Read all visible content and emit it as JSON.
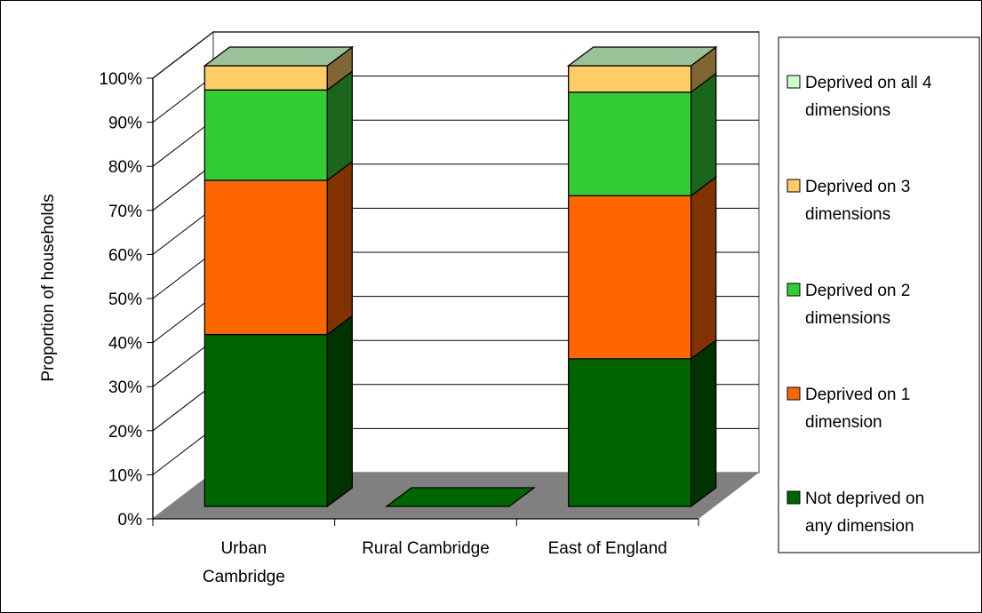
{
  "chart_data": {
    "type": "bar",
    "subtype": "stacked-percent-3d",
    "ylabel": "Proportion of households",
    "yticks": [
      "0%",
      "10%",
      "20%",
      "30%",
      "40%",
      "50%",
      "60%",
      "70%",
      "80%",
      "90%",
      "100%"
    ],
    "ylim": [
      0,
      100
    ],
    "grid": true,
    "legend_position": "right",
    "categories": [
      {
        "label": "Urban Cambridge",
        "lines": [
          "Urban",
          "Cambridge"
        ]
      },
      {
        "label": "Rural Cambridge",
        "lines": [
          "Rural Cambridge"
        ]
      },
      {
        "label": "East of England",
        "lines": [
          "East of England"
        ]
      }
    ],
    "series": [
      {
        "name": "Not deprived on any dimension",
        "legend_lines": [
          "Not deprived on",
          "any dimension"
        ],
        "color": "#006600",
        "side_color": "#003300",
        "values": [
          39,
          0,
          33.5
        ]
      },
      {
        "name": "Deprived on 1 dimension",
        "legend_lines": [
          "Deprived on 1",
          "dimension"
        ],
        "color": "#FF6600",
        "side_color": "#803300",
        "values": [
          35,
          0,
          37
        ]
      },
      {
        "name": "Deprived on 2 dimensions",
        "legend_lines": [
          "Deprived on 2",
          "dimensions"
        ],
        "color": "#33CC33",
        "side_color": "#1A661A",
        "values": [
          20.5,
          0,
          23.5
        ]
      },
      {
        "name": "Deprived on 3 dimensions",
        "legend_lines": [
          "Deprived on 3",
          "dimensions"
        ],
        "color": "#FFCC66",
        "side_color": "#806633",
        "values": [
          5.5,
          0,
          6
        ]
      },
      {
        "name": "Deprived on all 4 dimensions",
        "legend_lines": [
          "Deprived on all 4",
          "dimensions"
        ],
        "color": "#CCFFCC",
        "side_color": "#668066",
        "values": [
          0,
          0,
          0
        ]
      }
    ],
    "top_color": "#99C299",
    "floor_color": "#808080",
    "wall_color": "#FFFFFF",
    "gridline_color": "#000000"
  }
}
